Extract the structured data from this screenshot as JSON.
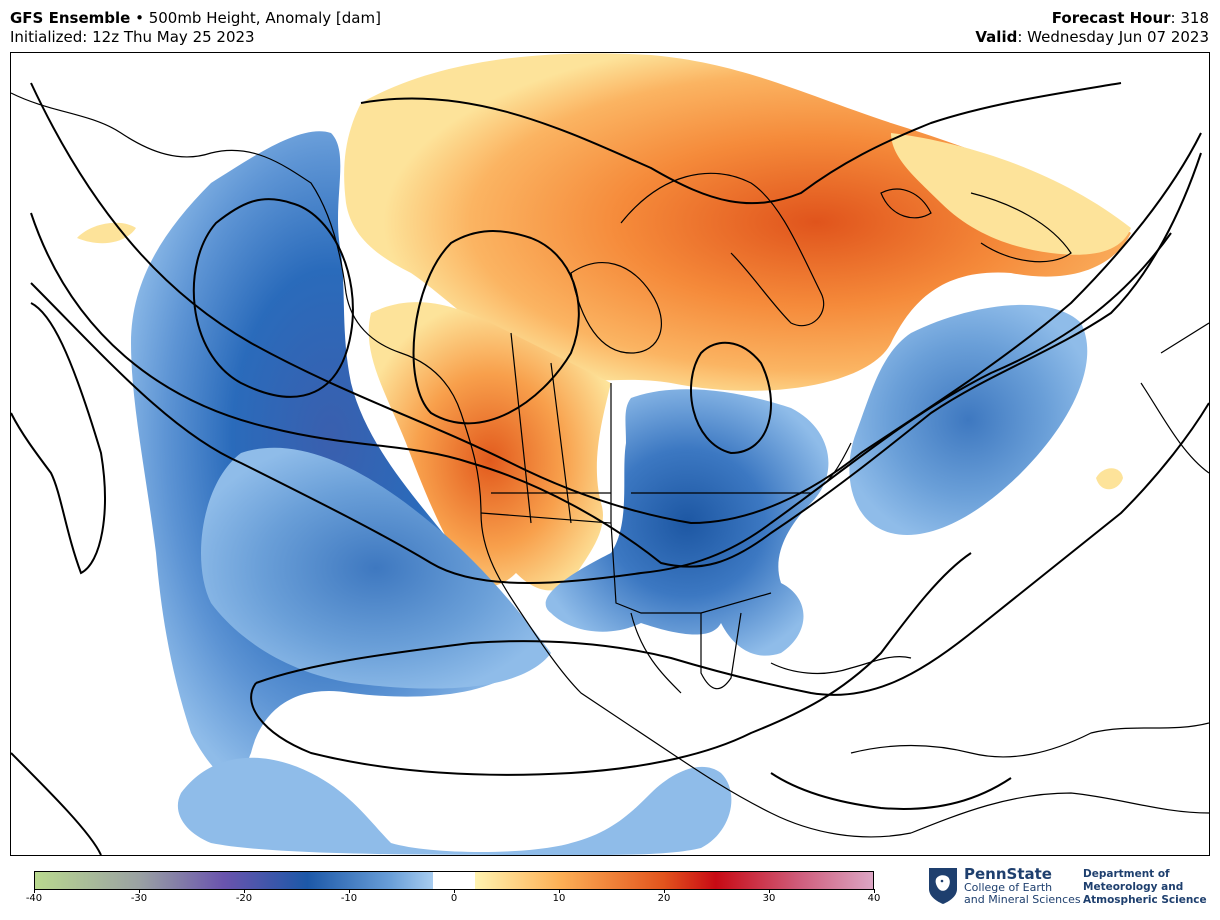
{
  "header": {
    "model": "GFS Ensemble",
    "separator": " • ",
    "product": "500mb Height, Anomaly [dam]",
    "init_label": "Initialized: 12z Thu May 25 2023",
    "forecast_hour_label": "Forecast Hour",
    "forecast_hour_value": ": 318",
    "valid_label": "Valid",
    "valid_value": ": Wednesday Jun 07 2023"
  },
  "colorbar": {
    "min": -40,
    "max": 40,
    "ticks": [
      "-40",
      "-30",
      "-20",
      "-10",
      "0",
      "10",
      "20",
      "30",
      "40"
    ],
    "stops": [
      {
        "v": -40,
        "c": "#b9d98f"
      },
      {
        "v": -30,
        "c": "#9aa1a3"
      },
      {
        "v": -22,
        "c": "#6a54ad"
      },
      {
        "v": -14,
        "c": "#1c58a8"
      },
      {
        "v": -6,
        "c": "#6a9fd8"
      },
      {
        "v": -2,
        "c": "#a8cdf0"
      },
      {
        "v": -2,
        "c": "#ffffff"
      },
      {
        "v": 2,
        "c": "#ffffff"
      },
      {
        "v": 2,
        "c": "#fff3b0"
      },
      {
        "v": 10,
        "c": "#fdb157"
      },
      {
        "v": 20,
        "c": "#e2541d"
      },
      {
        "v": 25,
        "c": "#c80a14"
      },
      {
        "v": 33,
        "c": "#cf5d7c"
      },
      {
        "v": 40,
        "c": "#dca6c4"
      }
    ]
  },
  "map": {
    "neg_fill": "#8fbce9",
    "neg_mid": "#4d85c9",
    "neg_core": "#1d57a3",
    "pos_fill": "#fde39a",
    "pos_mid": "#fba24e",
    "pos_core": "#e05a1c",
    "contour_color": "#000000",
    "coast_color": "#000000"
  },
  "logo": {
    "name": "PennState",
    "college_line1": "College of Earth",
    "college_line2": "and Mineral Sciences",
    "dept_line1": "Department of",
    "dept_line2": "Meteorology and",
    "dept_line3": "Atmospheric Science"
  }
}
